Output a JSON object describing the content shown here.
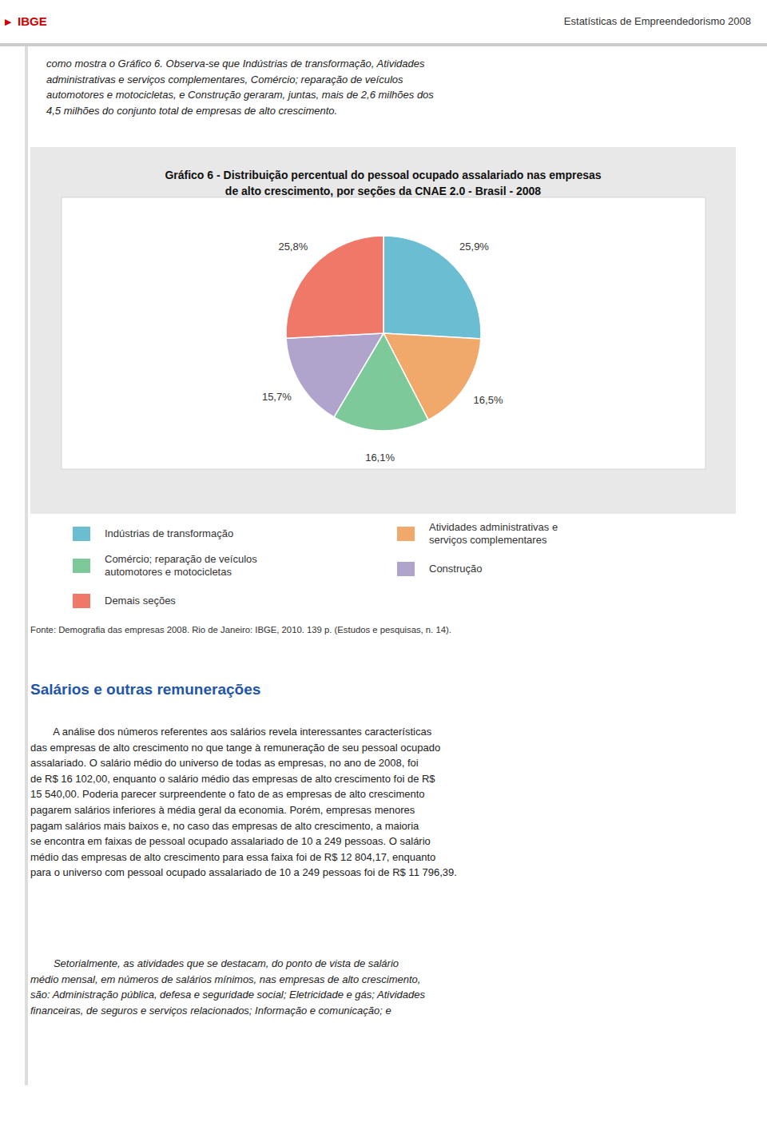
{
  "page": {
    "logo_mark": "▶",
    "logo": "IBGE",
    "header_text": "Estatísticas de Empreendedorismo 2008",
    "body_text_1": "como mostra o Gráfico 6. Observa-se que Indústrias de transformação, Atividades\nadministrativas e serviços complementares, Comércio; reparação de veículos\nautomotores e motocicletas, e Construção geraram, juntas, mais de 2,6 milhões dos\n4,5 milhões do conjunto total de empresas de alto crescimento.",
    "fonte": "Fonte: Demografia das empresas 2008. Rio de Janeiro: IBGE, 2010. 139 p. (Estudos e pesquisas, n. 14).",
    "section_title": "Salários e outras remunerações",
    "body_text_2": "        A análise dos números referentes aos salários revela interessantes características\ndas empresas de alto crescimento no que tange à remuneração de seu pessoal ocupado\nassalariado. O salário médio do universo de todas as empresas, no ano de 2008, foi\nde R$ 16 102,00, enquanto o salário médio das empresas de alto crescimento foi de R$\n15 540,00. Poderia parecer surpreendente o fato de as empresas de alto crescimento\npagarem salários inferiores à média geral da economia. Porém, empresas menores\npagam salários mais baixos e, no caso das empresas de alto crescimento, a maioria\nse encontra em faixas de pessoal ocupado assalariado de 10 a 249 pessoas. O salário\nmédio das empresas de alto crescimento para essa faixa foi de R$ 12 804,17, enquanto\npara o universo com pessoal ocupado assalariado de 10 a 249 pessoas foi de R$ 11 796,39.",
    "body_text_3": "        Setorialmente, as atividades que se destacam, do ponto de vista de salário\nmédio mensal, em números de salários mínimos, nas empresas de alto crescimento,\nsão: Administração pública, defesa e seguridade social; Eletricidade e gás; Atividades\nfinanceiras, de seguros e serviços relacionados; Informação e comunicação; e"
  },
  "chart_data": {
    "type": "pie",
    "title": "Gráfico 6 - Distribuição percentual do pessoal ocupado assalariado nas empresas\nde alto crescimento, por seções da CNAE 2.0 - Brasil - 2008",
    "categories": [
      "Indústrias de transformação",
      "Atividades administrativas e\nserviços complementares",
      "Comércio; reparação de veículos\nautomotores e motocicletas",
      "Construção",
      "Demais seções"
    ],
    "values": [
      25.9,
      16.5,
      16.1,
      15.7,
      25.8
    ],
    "value_labels": [
      "25,9%",
      "16,5%",
      "16,1%",
      "15,7%",
      "25,8%"
    ],
    "colors": [
      "#6BBDD1",
      "#F0A96A",
      "#7EC99A",
      "#B0A4CC",
      "#F07868"
    ],
    "data_labels": true,
    "legend": "bottom"
  }
}
